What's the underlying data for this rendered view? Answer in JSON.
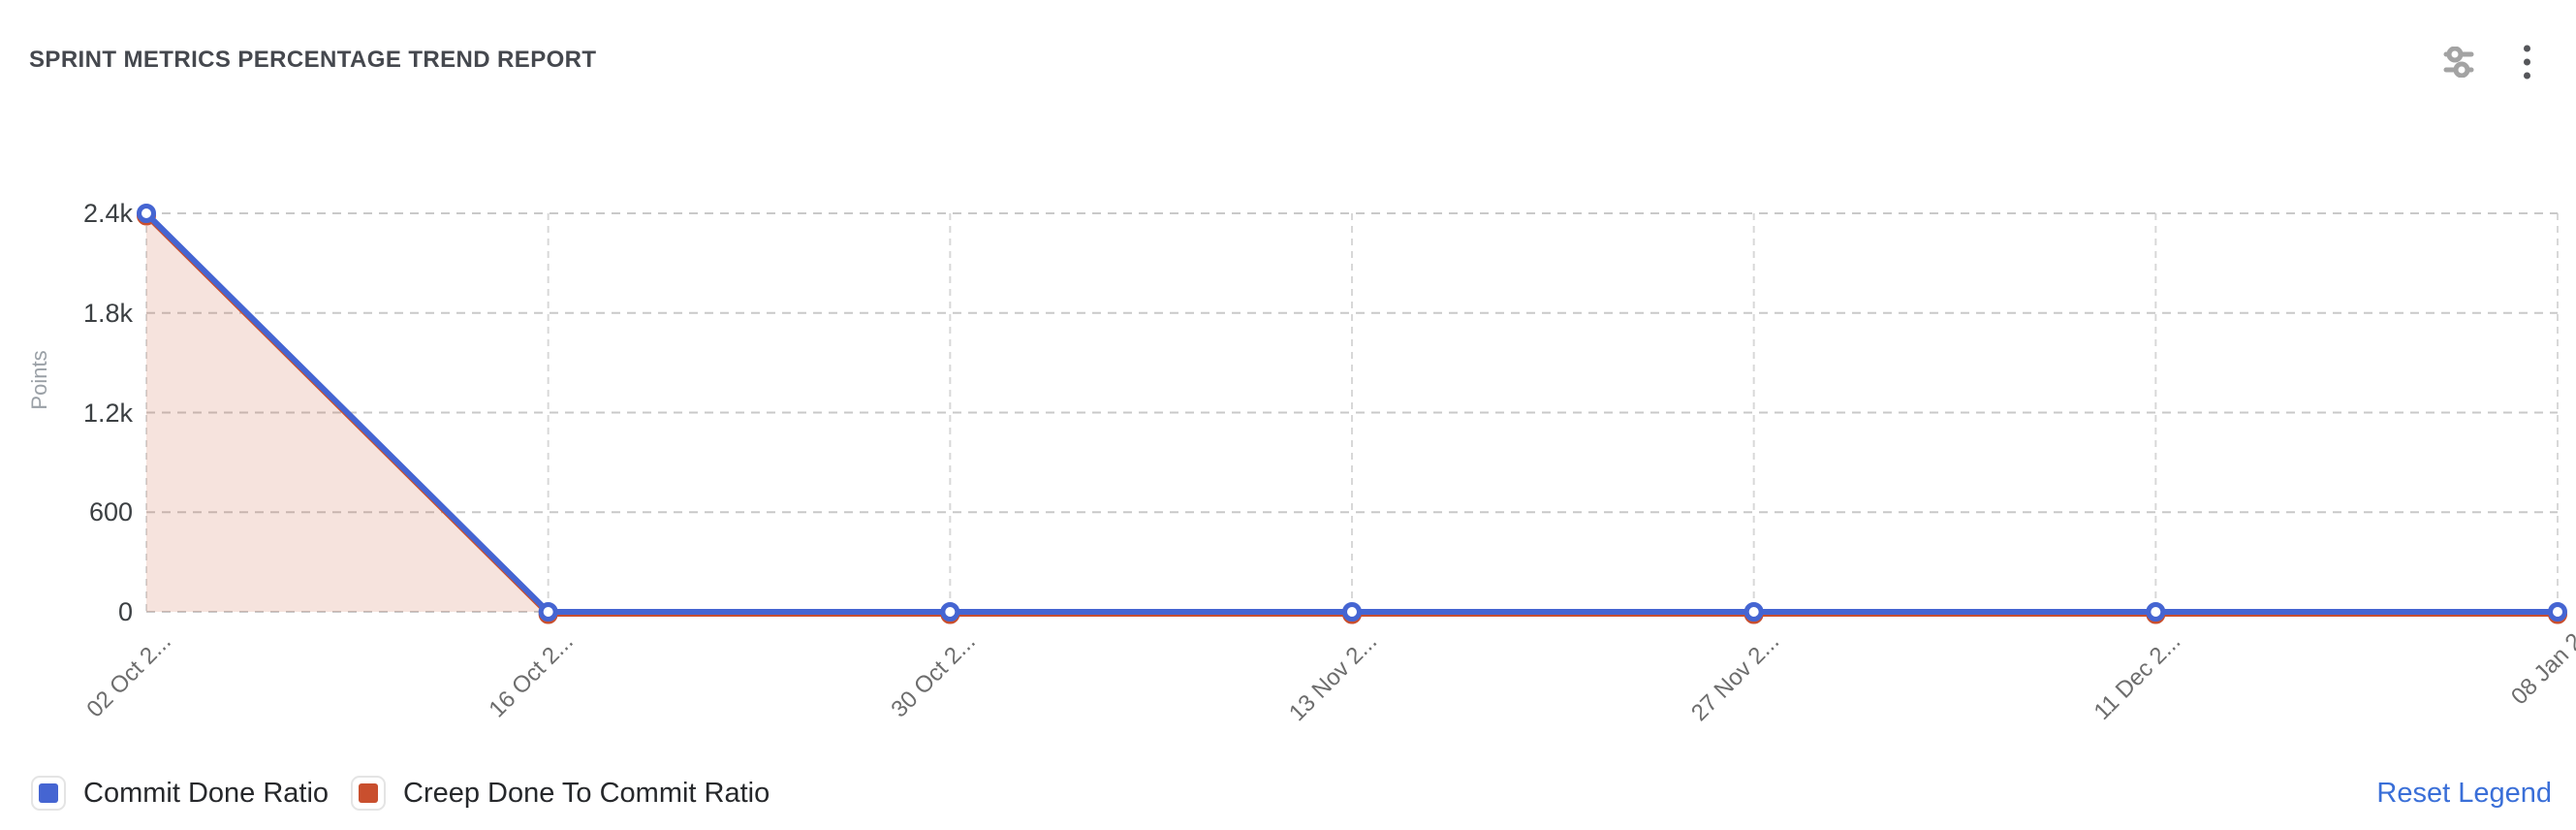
{
  "header": {
    "title": "SPRINT METRICS PERCENTAGE TREND REPORT",
    "icons": [
      {
        "name": "sliders-icon",
        "meaning": "chart settings / filters"
      },
      {
        "name": "kebab-menu-icon",
        "meaning": "more options"
      }
    ]
  },
  "chart_data": {
    "type": "line",
    "title": "Sprint Metrics Percentage Trend Report",
    "xlabel": "",
    "ylabel": "Points",
    "categories": [
      "02 Oct 2...",
      "16 Oct 2...",
      "30 Oct 2...",
      "13 Nov 2...",
      "27 Nov 2...",
      "11 Dec 2...",
      "08 Jan 2"
    ],
    "series": [
      {
        "name": "Commit Done Ratio",
        "color": "#4565d2",
        "values": [
          2400,
          0,
          0,
          0,
          0,
          0,
          0
        ],
        "area": false,
        "marker": "ring"
      },
      {
        "name": "Creep Done To Commit Ratio",
        "color": "#c94f2e",
        "values": [
          2400,
          0,
          0,
          0,
          0,
          0,
          0
        ],
        "area": true,
        "area_color": "rgba(201,79,46,0.16)",
        "marker": "ring"
      }
    ],
    "ylim": [
      0,
      2400
    ],
    "y_ticks": [
      {
        "value": 0,
        "label": "0"
      },
      {
        "value": 600,
        "label": "600"
      },
      {
        "value": 1200,
        "label": "1.2k"
      },
      {
        "value": 1800,
        "label": "1.8k"
      },
      {
        "value": 2400,
        "label": "2.4k"
      }
    ],
    "grid": "dashed",
    "legend_position": "bottom-left"
  },
  "legend": {
    "items": [
      {
        "label": "Commit Done Ratio",
        "color": "#4565d2"
      },
      {
        "label": "Creep Done To Commit Ratio",
        "color": "#c94f2e"
      }
    ],
    "reset_label": "Reset Legend",
    "reset_color": "#3a6fd8"
  }
}
